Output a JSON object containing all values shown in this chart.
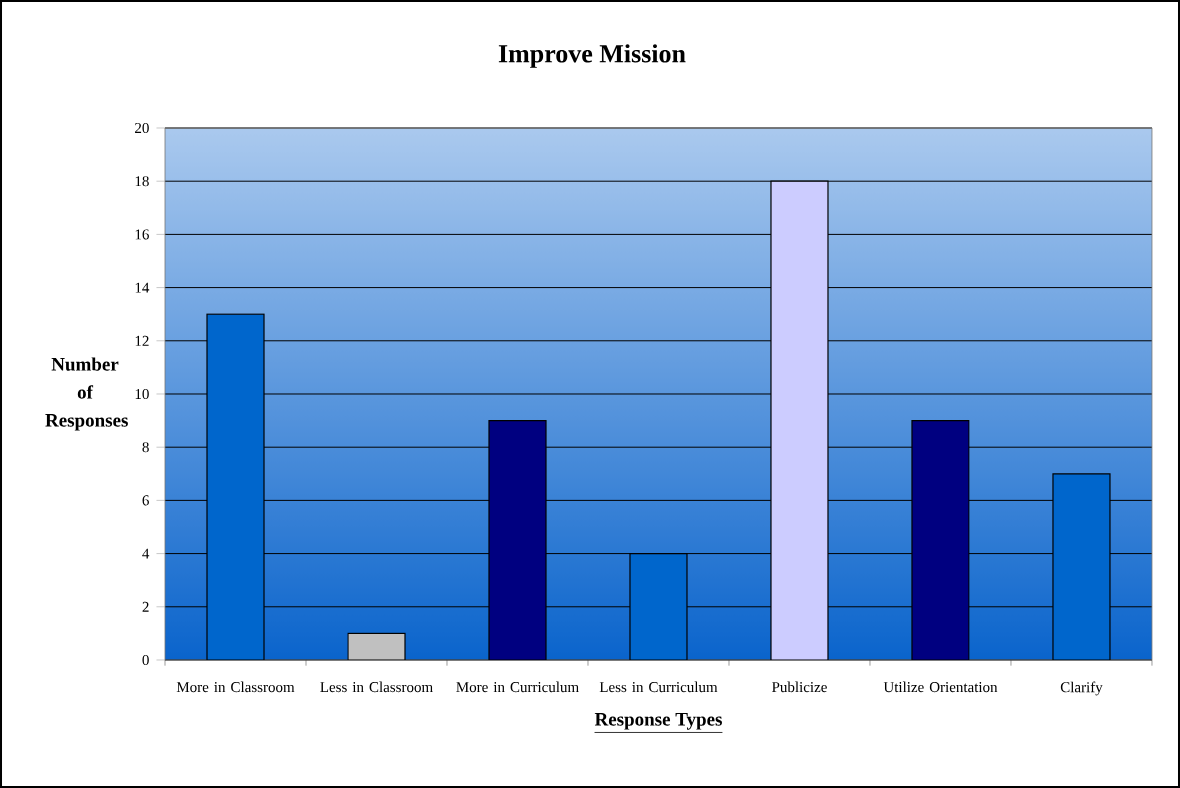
{
  "chart_data": {
    "type": "bar",
    "title": "Improve Mission",
    "xlabel": "Response Types",
    "ylabel": "Number of Responses",
    "categories": [
      "More in Classroom",
      "Less in Classroom",
      "More in Curriculum",
      "Less in Curriculum",
      "Publicize",
      "Utilize Orientation",
      "Clarify"
    ],
    "values": [
      13,
      1,
      9,
      4,
      18,
      9,
      7
    ],
    "colors": [
      "#0066cc",
      "#c0c0c0",
      "#000080",
      "#0066cc",
      "#ccccff",
      "#000080",
      "#0066cc"
    ],
    "ylim": [
      0,
      20
    ],
    "yticks": [
      0,
      2,
      4,
      6,
      8,
      10,
      12,
      14,
      16,
      18,
      20
    ],
    "grid": "y"
  }
}
